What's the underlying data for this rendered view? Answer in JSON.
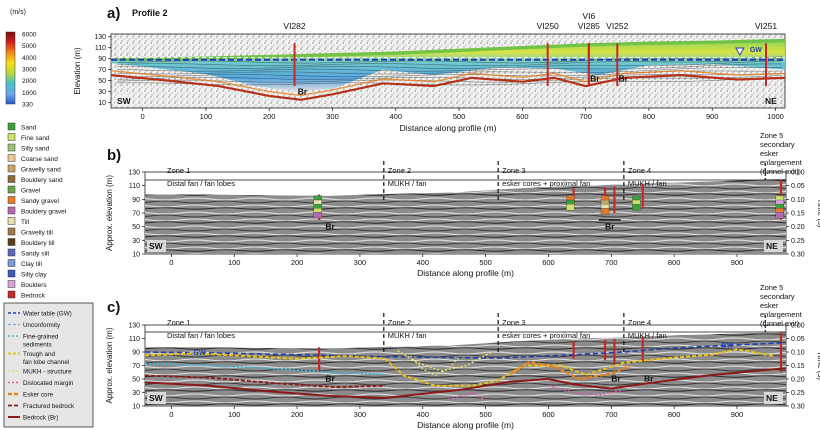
{
  "panel_a": {
    "letter": "a)",
    "title": "Profile 2",
    "velocity_unit": "(m/s)",
    "velocity_ticks": [
      "6000",
      "5000",
      "4000",
      "3000",
      "2000",
      "1000",
      "330"
    ],
    "colorbar_stops": [
      "#7a0a0a",
      "#d21f1f",
      "#f28a1c",
      "#f4e01a",
      "#b6d83a",
      "#48c0c8",
      "#6fa8e6",
      "#2f57c9"
    ],
    "wells": [
      {
        "label": "VI282",
        "x": 240
      },
      {
        "label": "VI250",
        "x": 640
      },
      {
        "label": "VI6",
        "x": 705,
        "top": true
      },
      {
        "label": "VI285",
        "x": 705
      },
      {
        "label": "VI252",
        "x": 750
      },
      {
        "label": "VI251",
        "x": 985
      }
    ],
    "ylabel": "Elevation (m)",
    "yticks": [
      130,
      110,
      90,
      70,
      50,
      30,
      10
    ],
    "xlabel": "Distance along profile (m)",
    "xticks": [
      0,
      100,
      200,
      300,
      400,
      500,
      600,
      700,
      800,
      900,
      1000
    ],
    "corner_left": "SW",
    "corner_right": "NE",
    "gw_label": "GW",
    "br_labels": [
      {
        "x": 245,
        "text": "Br"
      },
      {
        "x": 707,
        "text": "Br"
      },
      {
        "x": 752,
        "text": "Br"
      }
    ]
  },
  "legend_a": {
    "items": [
      {
        "label": "Sand",
        "color": "#3aa23a"
      },
      {
        "label": "Fine sand",
        "color": "#c9e26a"
      },
      {
        "label": "Silty sand",
        "color": "#9ac47a"
      },
      {
        "label": "Coarse sand",
        "color": "#e9c79b"
      },
      {
        "label": "Gravelly sand",
        "color": "#c9a46a"
      },
      {
        "label": "Bouldery sand",
        "color": "#8a6a3a"
      },
      {
        "label": "Gravel",
        "color": "#6aa04a"
      },
      {
        "label": "Sandy gravel",
        "color": "#e27a2a"
      },
      {
        "label": "Bouldery gravel",
        "color": "#b06ab0"
      },
      {
        "label": "Till",
        "color": "#e3e3b0"
      },
      {
        "label": "Gravelly till",
        "color": "#9c7b4a"
      },
      {
        "label": "Bouldery till",
        "color": "#5a3c1c"
      },
      {
        "label": "Sandy silt",
        "color": "#5a6ab8"
      },
      {
        "label": "Clay till",
        "color": "#7a9ad8"
      },
      {
        "label": "Silty clay",
        "color": "#3b5bc0"
      },
      {
        "label": "Boulders",
        "color": "#d8a4d8"
      },
      {
        "label": "Bedrock",
        "color": "#c62828"
      }
    ]
  },
  "panel_b": {
    "letter": "b)",
    "ylabel": "Approx. elevation (m)",
    "yticks": [
      130,
      110,
      90,
      70,
      50,
      30,
      10
    ],
    "rlabel": "Time (s)",
    "rticks": [
      "0.00",
      "0.05",
      "0.10",
      "0.15",
      "0.20",
      "0.25",
      "0.30"
    ],
    "xlabel": "Distance along profile (m)",
    "xticks": [
      0,
      100,
      200,
      300,
      400,
      500,
      600,
      700,
      800,
      900
    ],
    "zones": [
      {
        "title": "Zone 1",
        "sub": "Distal fan / fan lobes",
        "x": -20
      },
      {
        "title": "Zone 2",
        "sub": "MUKH / fan",
        "x": 338
      },
      {
        "title": "Zone 3",
        "sub": "esker cores + proximal fan",
        "x": 520
      },
      {
        "title": "Zone 4",
        "sub": "MUKH / fan",
        "x": 720
      }
    ],
    "zone5": [
      "Zone 5",
      "secondary",
      "esker",
      "enlargement",
      "(tunnel exit)"
    ],
    "corner_left": "SW",
    "corner_right": "NE",
    "br_labels": [
      {
        "x": 245,
        "text": "Br"
      },
      {
        "x": 690,
        "text": "Br"
      }
    ]
  },
  "legend_c": {
    "items": [
      {
        "label": "Water table (GW)",
        "style": "dash-blue"
      },
      {
        "label": "Unconformity",
        "style": "dash-lightblue"
      },
      {
        "label": "Fine-grained sediments",
        "style": "dash-cyan",
        "lines": [
          "Fine-grained",
          "sediments"
        ]
      },
      {
        "label": "Trough and fan lobe channel",
        "style": "dash-yellow",
        "lines": [
          "Trough and",
          "fan lobe channel"
        ]
      },
      {
        "label": "MUKH - structure",
        "style": "dash-lightyellow"
      },
      {
        "label": "Dislocated margin",
        "style": "dash-pink"
      },
      {
        "label": "Esker core",
        "style": "dash-orange"
      },
      {
        "label": "Fractured bedrock",
        "style": "dash-darkred"
      },
      {
        "label": "Bedrock (Br)",
        "style": "solid-darkred"
      }
    ]
  },
  "panel_c": {
    "letter": "c)",
    "ylabel": "Approx. elevation (m)",
    "yticks": [
      130,
      110,
      90,
      70,
      50,
      30,
      10
    ],
    "rlabel": "Time (s)",
    "rticks": [
      "0.00",
      "0.05",
      "0.10",
      "0.15",
      "0.20",
      "0.25",
      "0.30"
    ],
    "xlabel": "Distance along profile (m)",
    "xticks": [
      0,
      100,
      200,
      300,
      400,
      500,
      600,
      700,
      800,
      900
    ],
    "zones": [
      {
        "title": "Zone 1",
        "sub": "Distal fan / fan lobes",
        "x": -20
      },
      {
        "title": "Zone 2",
        "sub": "MUKH / fan",
        "x": 338
      },
      {
        "title": "Zone 3",
        "sub": "esker cores + proximal fan",
        "x": 520
      },
      {
        "title": "Zone 4",
        "sub": "MUKH / fan",
        "x": 720
      }
    ],
    "zone5": [
      "Zone 5",
      "secondary",
      "esker",
      "enlargement",
      "(tunnel exit)"
    ],
    "corner_left": "SW",
    "corner_right": "NE",
    "gw_labels": [
      {
        "x": 35,
        "text": "GW"
      },
      {
        "x": 875,
        "text": "GW"
      }
    ],
    "br_labels": [
      {
        "x": 245,
        "text": "Br"
      },
      {
        "x": 700,
        "text": "Br"
      },
      {
        "x": 752,
        "text": "Br"
      }
    ]
  }
}
